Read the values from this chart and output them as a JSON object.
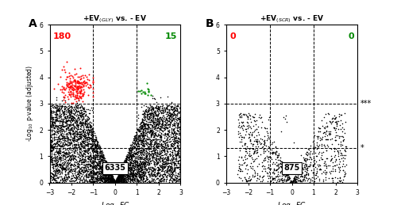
{
  "panel_A": {
    "title": "+EV$_{(GLY)}$ vs. - EV",
    "xlabel": "Log$_2$ FC",
    "ylabel": "-Log$_{10}$ p-value (adjusted)",
    "xlim": [
      -3,
      3
    ],
    "ylim": [
      0,
      6
    ],
    "xticks": [
      -3,
      -2,
      -1,
      0,
      1,
      2,
      3
    ],
    "yticks": [
      0,
      1,
      2,
      3,
      4,
      5,
      6
    ],
    "hlines": [
      1.3,
      3.0
    ],
    "vlines": [
      -1,
      1
    ],
    "count_neutral": "6335",
    "count_down": "180",
    "count_up": "15",
    "label": "A",
    "down_color": "#ff0000",
    "up_color": "#008800",
    "neutral_color": "#000000"
  },
  "panel_B": {
    "title": "+EV$_{(SCR)}$ vs. - EV",
    "xlabel": "Log$_2$ FC",
    "ylabel": "",
    "xlim": [
      -3,
      3
    ],
    "ylim": [
      0,
      6
    ],
    "xticks": [
      -3,
      -2,
      -1,
      0,
      1,
      2,
      3
    ],
    "yticks": [
      0,
      1,
      2,
      3,
      4,
      5,
      6
    ],
    "hlines": [
      1.3,
      3.0
    ],
    "vlines": [
      -1,
      1
    ],
    "count_neutral": "875",
    "count_down": "0",
    "count_up": "0",
    "label": "B",
    "down_color": "#ff0000",
    "up_color": "#008800",
    "neutral_color": "#000000",
    "stars_hi": "***",
    "stars_lo": "*"
  }
}
